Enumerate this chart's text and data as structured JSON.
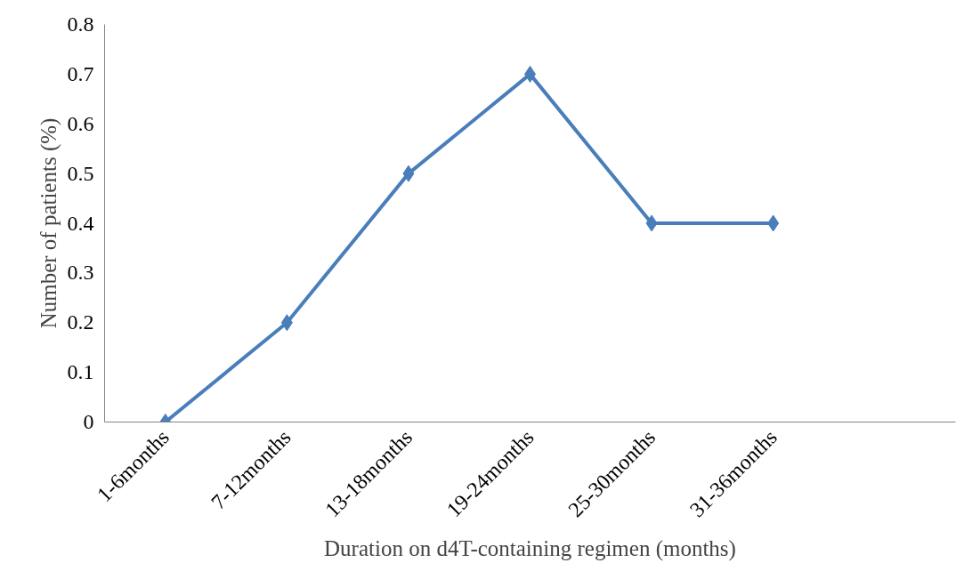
{
  "chart_data": {
    "type": "line",
    "xlabel": "Duration on d4T-containing regimen (months)",
    "ylabel": "Number of patients (%)",
    "categories": [
      "1-6months",
      "7-12months",
      "13-18months",
      "19-24months",
      "25-30months",
      "31-36months",
      null
    ],
    "series": [
      {
        "color": "#4a7ebb",
        "values": [
          0,
          0.2,
          0.5,
          0.7,
          0.4,
          0.4,
          null
        ]
      }
    ],
    "ylim": [
      0,
      0.8
    ],
    "yticks": [
      0,
      0.1,
      0.2,
      0.3,
      0.4,
      0.5,
      0.6,
      0.7,
      0.8
    ],
    "marker": "diamond",
    "line_style": "solid"
  }
}
